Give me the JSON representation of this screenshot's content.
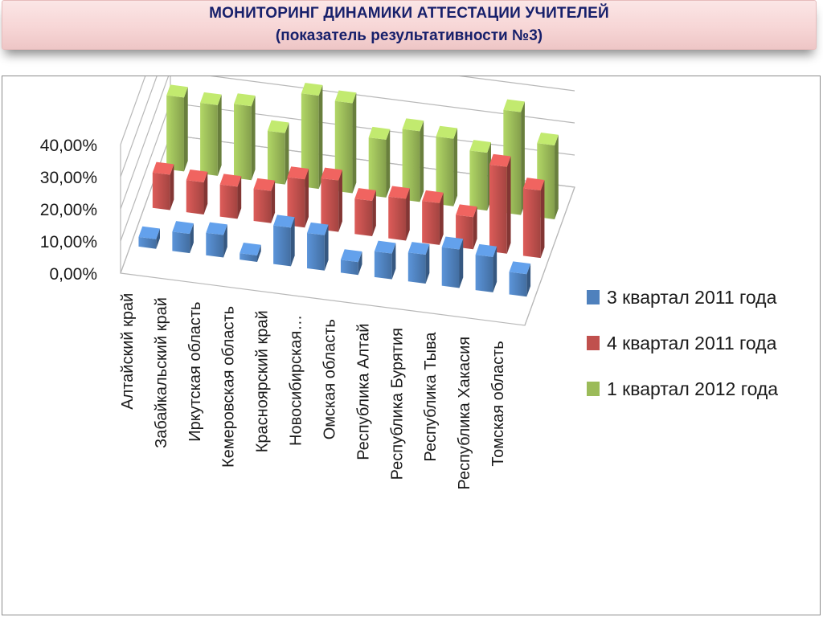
{
  "header": {
    "title": "МОНИТОРИНГ ДИНАМИКИ АТТЕСТАЦИИ УЧИТЕЛЕЙ",
    "subtitle": "(показатель результативности №3)"
  },
  "chart_data": {
    "type": "bar",
    "style": "3d-clustered-column",
    "categories": [
      "Алтайский  край",
      "Забайкальский край",
      "Иркутская область",
      "Кемеровская область",
      "Красноярский край",
      "Новосибирская…",
      "Омская область",
      "Республика Алтай",
      "Республика Бурятия",
      "Республика Тыва",
      "Республика Хакасия",
      "Томская область"
    ],
    "series": [
      {
        "name": "3 квартал 2011 года",
        "color": "#4f81bd",
        "values": [
          3,
          6,
          7,
          2,
          12,
          11,
          4,
          8,
          9,
          12,
          11,
          7
        ]
      },
      {
        "name": "4 квартал 2011 года",
        "color": "#c0504d",
        "values": [
          11,
          10,
          10,
          10,
          15,
          16,
          11,
          13,
          13,
          10,
          27,
          21
        ]
      },
      {
        "name": "1 квартал 2012 года",
        "color": "#9bbb59",
        "values": [
          23,
          22,
          23,
          16,
          29,
          28,
          18,
          22,
          21,
          18,
          32,
          23
        ]
      }
    ],
    "y_ticks": [
      "0,00%",
      "10,00%",
      "20,00%",
      "30,00%",
      "40,00%"
    ],
    "ylim": [
      0,
      40
    ],
    "grid": true,
    "legend_position": "right"
  }
}
